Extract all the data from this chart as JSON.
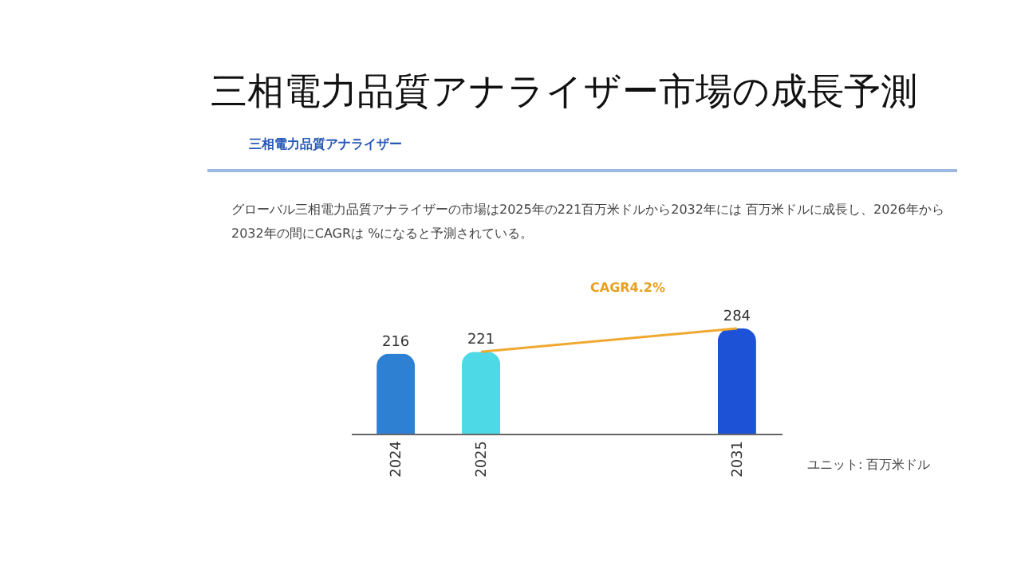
{
  "chart_data": {
    "type": "bar",
    "title": "三相電力品質アナライザー市場の成長予測",
    "subtitle": "三相電力品質アナライザー",
    "categories": [
      "2024",
      "2025",
      null,
      null,
      "2031"
    ],
    "values": [
      216,
      221,
      null,
      null,
      284
    ],
    "colors": [
      "#2e80d2",
      "#4dd9e6",
      "#cccccc",
      "#cccccc",
      "#1d52d6"
    ],
    "data_labels": true,
    "annotations": [
      "グローバル三相電力品質アナライザーの市場は2025年の221百万米ドルから2032年には 百万米ドルに成長し、2026年から2032年の間にCAGRは %になると予測されている。",
      "CAGR4.2%",
      "ユニット: 百万米ドル"
    ]
  }
}
